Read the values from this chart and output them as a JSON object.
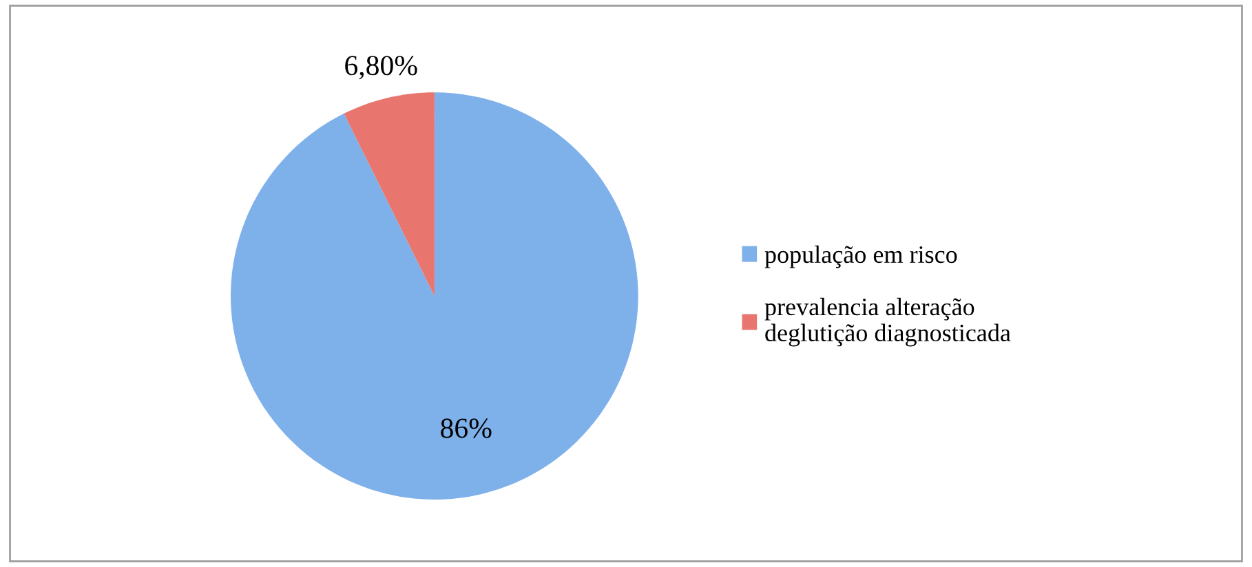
{
  "chart_data": {
    "type": "pie",
    "categories": [
      "população em risco",
      "prevalencia alteração deglutição diagnosticada"
    ],
    "values": [
      86,
      6.8
    ],
    "value_labels": [
      "86%",
      "6,80%"
    ],
    "colors": [
      "#7eb0ea",
      "#e8766e"
    ],
    "legend": "right"
  }
}
